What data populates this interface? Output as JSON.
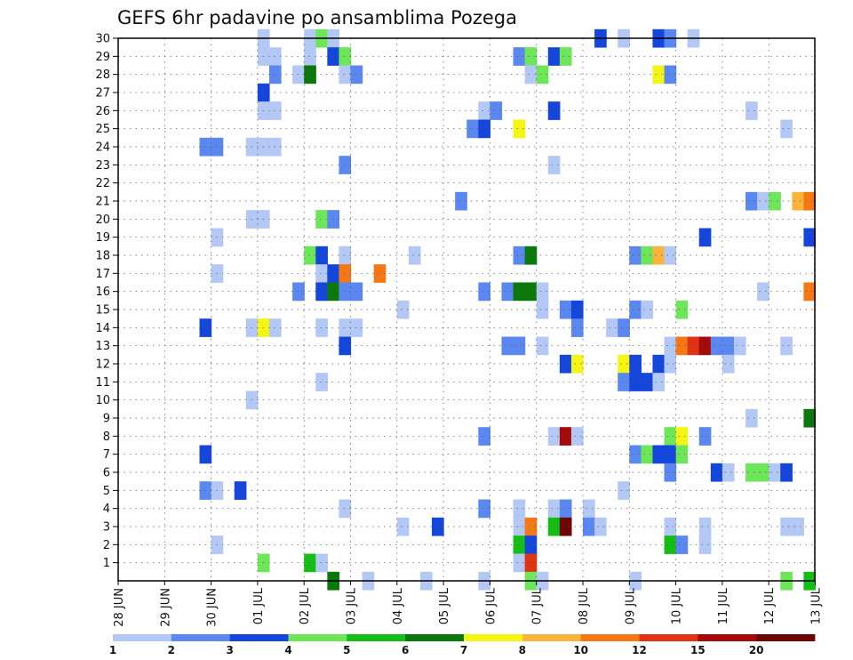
{
  "chart_data": {
    "type": "heatmap",
    "title": "GEFS 6hr padavine po ansamblima Pozega",
    "xlabel": "",
    "ylabel": "",
    "x_tick_labels": [
      "28 JUN",
      "29 JUN",
      "30 JUN",
      "01 JUL",
      "02 JUL",
      "03 JUL",
      "04 JUL",
      "05 JUL",
      "06 JUL",
      "07 JUL",
      "08 JUL",
      "09 JUL",
      "10 JUL",
      "11 JUL",
      "12 JUL",
      "13 JUL"
    ],
    "y_tick_labels": [
      "1",
      "2",
      "3",
      "4",
      "5",
      "6",
      "7",
      "8",
      "9",
      "10",
      "11",
      "12",
      "13",
      "14",
      "15",
      "16",
      "17",
      "18",
      "19",
      "20",
      "21",
      "22",
      "23",
      "24",
      "25",
      "26",
      "27",
      "28",
      "29",
      "30"
    ],
    "x_range_days": [
      0,
      15
    ],
    "y_range": [
      0,
      30
    ],
    "steps_per_day": 4,
    "grid": true,
    "colorbar": {
      "placement": "bottom",
      "labels": [
        "1",
        "2",
        "3",
        "4",
        "5",
        "6",
        "7",
        "8",
        "10",
        "12",
        "15",
        "20"
      ],
      "colors": [
        "#b4c8f5",
        "#5a87f0",
        "#1446dc",
        "#6ee65a",
        "#14be14",
        "#0a780a",
        "#f5f514",
        "#fab43c",
        "#f57814",
        "#e13214",
        "#a50a0a",
        "#6e0505"
      ]
    },
    "cells_format": [
      "member",
      "day_offset",
      "level_index"
    ],
    "cells": [
      [
        30,
        3,
        0
      ],
      [
        30,
        4,
        0
      ],
      [
        30,
        4.25,
        3
      ],
      [
        30,
        4.5,
        0
      ],
      [
        30,
        10.25,
        2
      ],
      [
        30,
        10.75,
        0
      ],
      [
        30,
        11.5,
        2
      ],
      [
        30,
        11.75,
        1
      ],
      [
        30,
        12.25,
        0
      ],
      [
        29,
        3,
        0
      ],
      [
        29,
        3.25,
        0
      ],
      [
        29,
        4,
        0
      ],
      [
        29,
        4.5,
        2
      ],
      [
        29,
        4.75,
        3
      ],
      [
        29,
        8.5,
        1
      ],
      [
        29,
        8.75,
        3
      ],
      [
        29,
        9.25,
        2
      ],
      [
        29,
        9.5,
        3
      ],
      [
        28,
        3.25,
        1
      ],
      [
        28,
        3.75,
        0
      ],
      [
        28,
        4,
        5
      ],
      [
        28,
        4.75,
        0
      ],
      [
        28,
        5,
        1
      ],
      [
        28,
        8.75,
        0
      ],
      [
        28,
        9,
        3
      ],
      [
        28,
        11.5,
        6
      ],
      [
        28,
        11.75,
        1
      ],
      [
        27,
        3,
        2
      ],
      [
        26,
        3,
        0
      ],
      [
        26,
        3.25,
        0
      ],
      [
        26,
        7.75,
        0
      ],
      [
        26,
        8,
        1
      ],
      [
        26,
        9.25,
        2
      ],
      [
        26,
        13.5,
        0
      ],
      [
        25,
        7.5,
        1
      ],
      [
        25,
        7.75,
        2
      ],
      [
        25,
        8.5,
        6
      ],
      [
        25,
        14.25,
        0
      ],
      [
        24,
        1.75,
        1
      ],
      [
        24,
        2,
        1
      ],
      [
        24,
        2.75,
        0
      ],
      [
        24,
        3,
        0
      ],
      [
        24,
        3.25,
        0
      ],
      [
        23,
        4.75,
        1
      ],
      [
        23,
        9.25,
        0
      ],
      [
        21,
        7.25,
        1
      ],
      [
        21,
        13.5,
        1
      ],
      [
        21,
        13.75,
        0
      ],
      [
        21,
        14,
        3
      ],
      [
        21,
        14.5,
        7
      ],
      [
        21,
        14.75,
        8
      ],
      [
        20,
        2.75,
        0
      ],
      [
        20,
        3,
        0
      ],
      [
        20,
        4.25,
        3
      ],
      [
        20,
        4.5,
        1
      ],
      [
        19,
        2,
        0
      ],
      [
        19,
        12.5,
        2
      ],
      [
        19,
        14.75,
        2
      ],
      [
        18,
        4,
        3
      ],
      [
        18,
        4.25,
        2
      ],
      [
        18,
        4.75,
        0
      ],
      [
        18,
        6.25,
        0
      ],
      [
        18,
        8.5,
        1
      ],
      [
        18,
        8.75,
        5
      ],
      [
        18,
        11,
        1
      ],
      [
        18,
        11.25,
        3
      ],
      [
        18,
        11.5,
        7
      ],
      [
        18,
        11.75,
        0
      ],
      [
        17,
        2,
        0
      ],
      [
        17,
        4.25,
        0
      ],
      [
        17,
        4.5,
        2
      ],
      [
        17,
        4.75,
        8
      ],
      [
        17,
        5.5,
        8
      ],
      [
        16,
        3.75,
        1
      ],
      [
        16,
        4.25,
        2
      ],
      [
        16,
        4.5,
        5
      ],
      [
        16,
        4.75,
        1
      ],
      [
        16,
        5,
        1
      ],
      [
        16,
        7.75,
        1
      ],
      [
        16,
        8.25,
        1
      ],
      [
        16,
        8.5,
        5
      ],
      [
        16,
        8.75,
        5
      ],
      [
        16,
        9,
        0
      ],
      [
        16,
        13.75,
        0
      ],
      [
        16,
        14.75,
        8
      ],
      [
        15,
        6,
        0
      ],
      [
        15,
        9,
        0
      ],
      [
        15,
        9.5,
        1
      ],
      [
        15,
        9.75,
        2
      ],
      [
        15,
        11,
        1
      ],
      [
        15,
        11.25,
        0
      ],
      [
        15,
        12,
        3
      ],
      [
        14,
        1.75,
        2
      ],
      [
        14,
        2.75,
        0
      ],
      [
        14,
        3,
        6
      ],
      [
        14,
        3.25,
        0
      ],
      [
        14,
        4.25,
        0
      ],
      [
        14,
        4.75,
        0
      ],
      [
        14,
        5,
        0
      ],
      [
        14,
        9.75,
        1
      ],
      [
        14,
        10.5,
        0
      ],
      [
        14,
        10.75,
        1
      ],
      [
        13,
        4.75,
        2
      ],
      [
        13,
        8.25,
        1
      ],
      [
        13,
        8.5,
        1
      ],
      [
        13,
        9,
        0
      ],
      [
        13,
        11.75,
        0
      ],
      [
        13,
        12,
        8
      ],
      [
        13,
        12.25,
        9
      ],
      [
        13,
        12.5,
        10
      ],
      [
        13,
        12.75,
        1
      ],
      [
        13,
        13,
        1
      ],
      [
        13,
        13.25,
        0
      ],
      [
        13,
        14.25,
        0
      ],
      [
        12,
        9.5,
        2
      ],
      [
        12,
        9.75,
        6
      ],
      [
        12,
        10.75,
        6
      ],
      [
        12,
        11,
        2
      ],
      [
        12,
        11.5,
        2
      ],
      [
        12,
        11.75,
        0
      ],
      [
        12,
        13,
        0
      ],
      [
        11,
        4.25,
        0
      ],
      [
        11,
        10.75,
        1
      ],
      [
        11,
        11,
        2
      ],
      [
        11,
        11.25,
        2
      ],
      [
        11,
        11.5,
        0
      ],
      [
        10,
        2.75,
        0
      ],
      [
        9,
        13.5,
        0
      ],
      [
        9,
        14.75,
        5
      ],
      [
        8,
        7.75,
        1
      ],
      [
        8,
        9.25,
        0
      ],
      [
        8,
        9.5,
        10
      ],
      [
        8,
        9.75,
        0
      ],
      [
        8,
        11.75,
        3
      ],
      [
        8,
        12,
        6
      ],
      [
        8,
        12.5,
        1
      ],
      [
        7,
        1.75,
        2
      ],
      [
        7,
        11,
        1
      ],
      [
        7,
        11.25,
        3
      ],
      [
        7,
        11.5,
        2
      ],
      [
        7,
        11.75,
        2
      ],
      [
        7,
        12,
        3
      ],
      [
        6,
        11.75,
        1
      ],
      [
        6,
        12.75,
        2
      ],
      [
        6,
        13,
        0
      ],
      [
        6,
        13.5,
        3
      ],
      [
        6,
        13.75,
        3
      ],
      [
        6,
        14,
        0
      ],
      [
        6,
        14.25,
        2
      ],
      [
        5,
        1.75,
        1
      ],
      [
        5,
        2,
        0
      ],
      [
        5,
        2.5,
        2
      ],
      [
        5,
        10.75,
        0
      ],
      [
        4,
        4.75,
        0
      ],
      [
        4,
        7.75,
        1
      ],
      [
        4,
        8.5,
        0
      ],
      [
        4,
        9.25,
        0
      ],
      [
        4,
        9.5,
        1
      ],
      [
        4,
        10,
        0
      ],
      [
        3,
        6,
        0
      ],
      [
        3,
        6.75,
        2
      ],
      [
        3,
        8.5,
        0
      ],
      [
        3,
        8.75,
        8
      ],
      [
        3,
        9.25,
        4
      ],
      [
        3,
        9.5,
        11
      ],
      [
        3,
        10,
        1
      ],
      [
        3,
        10.25,
        0
      ],
      [
        3,
        11.75,
        0
      ],
      [
        3,
        12.5,
        0
      ],
      [
        3,
        14.25,
        0
      ],
      [
        3,
        14.5,
        0
      ],
      [
        2,
        2,
        0
      ],
      [
        2,
        8.5,
        4
      ],
      [
        2,
        8.75,
        2
      ],
      [
        2,
        11.75,
        4
      ],
      [
        2,
        12,
        1
      ],
      [
        2,
        12.5,
        0
      ],
      [
        1,
        3,
        3
      ],
      [
        1,
        4,
        4
      ],
      [
        1,
        4.25,
        0
      ],
      [
        1,
        8.5,
        0
      ],
      [
        1,
        8.75,
        9
      ],
      [
        0,
        4.5,
        5
      ],
      [
        0,
        5.25,
        0
      ],
      [
        0,
        6.5,
        0
      ],
      [
        0,
        7.75,
        0
      ],
      [
        0,
        8.75,
        3
      ],
      [
        0,
        9,
        0
      ],
      [
        0,
        11,
        0
      ],
      [
        0,
        14.25,
        3
      ],
      [
        0,
        14.75,
        4
      ]
    ]
  }
}
